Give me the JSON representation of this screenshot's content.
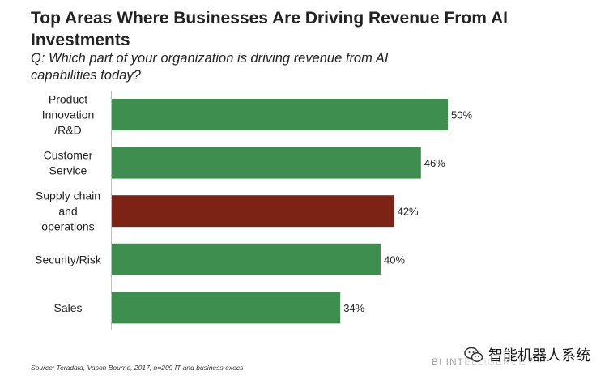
{
  "title": "Top Areas Where Businesses Are Driving Revenue From AI Investments",
  "subtitle": "Q: Which part of your organization is driving revenue from AI capabilities today?",
  "source": "Source: Teradata, Vason Bourne, 2017, n=209 IT and business execs",
  "brand": "BI INTELLIGENCE",
  "watermark": "智能机器人系统",
  "chart_data": {
    "type": "bar",
    "orientation": "horizontal",
    "title": "Top Areas Where Businesses Are Driving Revenue From AI Investments",
    "xlabel": "",
    "ylabel": "",
    "xlim": [
      0,
      50
    ],
    "grid": false,
    "unit": "%",
    "categories": [
      [
        "Product",
        "Innovation",
        "/R&D"
      ],
      [
        "Customer",
        "Service"
      ],
      [
        "Supply chain",
        "and",
        "operations"
      ],
      [
        "Security/Risk"
      ],
      [
        "Sales"
      ]
    ],
    "values": [
      50,
      46,
      42,
      40,
      34
    ],
    "data_labels": [
      "50%",
      "46%",
      "42%",
      "40%",
      "34%"
    ],
    "colors": [
      "#3e8e4f",
      "#3e8e4f",
      "#7d2316",
      "#3e8e4f",
      "#3e8e4f"
    ]
  }
}
